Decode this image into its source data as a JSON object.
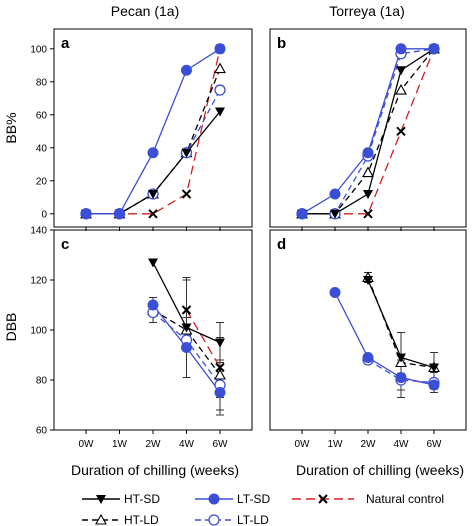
{
  "chart_data": {
    "type": "line",
    "column_titles": [
      "Pecan (1a)",
      "Torreya (1a)"
    ],
    "xlabel": "Duration of chilling (weeks)",
    "x_categories": [
      "0W",
      "1W",
      "2W",
      "4W",
      "6W"
    ],
    "row_ylabels": [
      "BB%",
      "DBB"
    ],
    "legend": [
      {
        "key": "ht_sd",
        "label": "HT-SD"
      },
      {
        "key": "lt_sd",
        "label": "LT-SD"
      },
      {
        "key": "nc",
        "label": "Natural control"
      },
      {
        "key": "ht_ld",
        "label": "HT-LD"
      },
      {
        "key": "lt_ld",
        "label": "LT-LD"
      }
    ],
    "series_style": {
      "ht_sd": {
        "color": "#000000",
        "dash": "",
        "marker": "tri-down-filled"
      },
      "ht_ld": {
        "color": "#000000",
        "dash": "6,4",
        "marker": "tri-up-open"
      },
      "lt_sd": {
        "color": "#3b4fd6",
        "dash": "",
        "marker": "circle-filled"
      },
      "lt_ld": {
        "color": "#3b4fd6",
        "dash": "6,4",
        "marker": "circle-open"
      },
      "nc": {
        "color": "#d42020",
        "dash": "9,5",
        "marker": "x"
      }
    },
    "panels": [
      {
        "label": "a",
        "row": 0,
        "col": 0,
        "ylim": [
          -8,
          112
        ],
        "yticks": [
          0,
          20,
          40,
          60,
          80,
          100
        ],
        "series": {
          "ht_sd": [
            [
              0,
              0
            ],
            [
              1,
              0
            ],
            [
              2,
              12
            ],
            [
              3,
              37
            ],
            [
              4,
              62
            ]
          ],
          "ht_ld": [
            [
              0,
              0
            ],
            [
              1,
              0
            ],
            [
              2,
              12
            ],
            [
              3,
              37
            ],
            [
              4,
              88
            ]
          ],
          "lt_sd": [
            [
              0,
              0
            ],
            [
              1,
              0
            ],
            [
              2,
              37
            ],
            [
              3,
              87
            ],
            [
              4,
              100
            ]
          ],
          "lt_ld": [
            [
              0,
              0
            ],
            [
              1,
              0
            ],
            [
              2,
              12
            ],
            [
              3,
              37
            ],
            [
              4,
              75
            ]
          ],
          "nc": [
            [
              0,
              0
            ],
            [
              1,
              0
            ],
            [
              2,
              0
            ],
            [
              3,
              12
            ],
            [
              4,
              100
            ]
          ]
        }
      },
      {
        "label": "b",
        "row": 0,
        "col": 1,
        "ylim": [
          -8,
          112
        ],
        "yticks": [],
        "series": {
          "ht_sd": [
            [
              0,
              0
            ],
            [
              1,
              0
            ],
            [
              2,
              12
            ],
            [
              3,
              87
            ],
            [
              4,
              100
            ]
          ],
          "ht_ld": [
            [
              0,
              0
            ],
            [
              1,
              0
            ],
            [
              2,
              25
            ],
            [
              3,
              75
            ],
            [
              4,
              100
            ]
          ],
          "lt_sd": [
            [
              0,
              0
            ],
            [
              1,
              12
            ],
            [
              2,
              37
            ],
            [
              3,
              100
            ],
            [
              4,
              100
            ]
          ],
          "lt_ld": [
            [
              0,
              0
            ],
            [
              1,
              0
            ],
            [
              2,
              35
            ],
            [
              3,
              97
            ],
            [
              4,
              100
            ]
          ],
          "nc": [
            [
              0,
              0
            ],
            [
              1,
              0
            ],
            [
              2,
              0
            ],
            [
              3,
              50
            ],
            [
              4,
              100
            ]
          ]
        }
      },
      {
        "label": "c",
        "row": 1,
        "col": 0,
        "ylim": [
          60,
          140
        ],
        "yticks": [
          60,
          80,
          100,
          120,
          140
        ],
        "series": {
          "ht_sd": [
            [
              2,
              127
            ],
            [
              3,
              101
            ],
            [
              4,
              95
            ]
          ],
          "ht_ld": [
            [
              2,
              108
            ],
            [
              3,
              100
            ],
            [
              4,
              82
            ]
          ],
          "lt_sd": [
            [
              2,
              110
            ],
            [
              3,
              93
            ],
            [
              4,
              75
            ]
          ],
          "lt_ld": [
            [
              2,
              107
            ],
            [
              3,
              96
            ],
            [
              4,
              78
            ]
          ],
          "nc": [
            [
              3,
              108
            ],
            [
              4,
              85
            ]
          ]
        },
        "errors": [
          [
            2,
            110,
            3
          ],
          [
            2,
            107,
            4
          ],
          [
            3,
            101,
            20
          ],
          [
            3,
            108,
            12
          ],
          [
            3,
            93,
            12
          ],
          [
            4,
            95,
            8
          ],
          [
            4,
            85,
            12
          ],
          [
            4,
            75,
            9
          ],
          [
            4,
            78,
            10
          ]
        ]
      },
      {
        "label": "d",
        "row": 1,
        "col": 1,
        "ylim": [
          60,
          140
        ],
        "yticks": [],
        "series": {
          "ht_sd": [
            [
              2,
              120
            ],
            [
              3,
              89
            ],
            [
              4,
              85
            ]
          ],
          "ht_ld": [
            [
              2,
              121
            ],
            [
              3,
              87
            ],
            [
              4,
              85
            ]
          ],
          "lt_sd": [
            [
              1,
              115
            ],
            [
              2,
              89
            ],
            [
              3,
              81
            ],
            [
              4,
              78
            ]
          ],
          "lt_ld": [
            [
              2,
              88
            ],
            [
              3,
              80
            ],
            [
              4,
              79
            ]
          ],
          "nc": [
            [
              3,
              81
            ],
            [
              4,
              78
            ]
          ]
        },
        "errors": [
          [
            2,
            121,
            2
          ],
          [
            3,
            89,
            10
          ],
          [
            3,
            82,
            6
          ],
          [
            3,
            80,
            7
          ],
          [
            4,
            85,
            6
          ],
          [
            4,
            79,
            4
          ]
        ]
      }
    ]
  }
}
